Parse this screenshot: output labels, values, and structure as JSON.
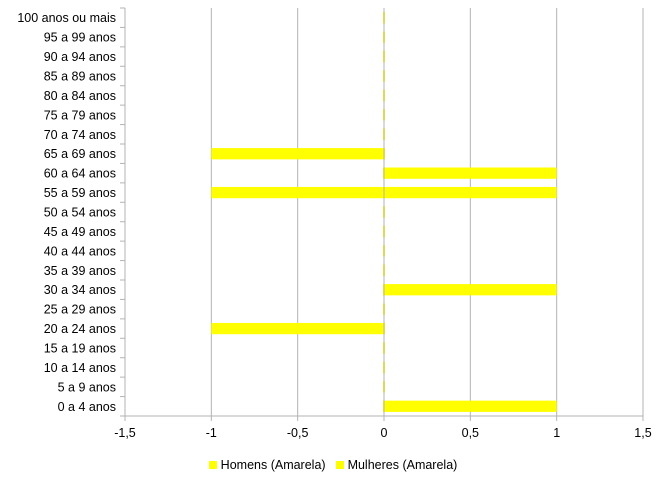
{
  "chart_data": {
    "type": "bar",
    "orientation": "horizontal",
    "stacked": true,
    "categories": [
      "0 a 4 anos",
      "5 a 9 anos",
      "10 a 14 anos",
      "15 a 19 anos",
      "20 a 24 anos",
      "25 a 29 anos",
      "30 a 34 anos",
      "35 a 39 anos",
      "40 a 44 anos",
      "45 a 49 anos",
      "50 a 54 anos",
      "55 a 59 anos",
      "60 a 64 anos",
      "65 a 69 anos",
      "70 a 74 anos",
      "75 a 79 anos",
      "80 a 84 anos",
      "85 a 89 anos",
      "90 a 94 anos",
      "95 a 99 anos",
      "100 anos ou mais"
    ],
    "series": [
      {
        "name": "Homens (Amarela)",
        "color": "#ffff00",
        "values": [
          0,
          0,
          0,
          0,
          -1,
          0,
          0,
          0,
          0,
          0,
          0,
          -1,
          0,
          -1,
          0,
          0,
          0,
          0,
          0,
          0,
          0
        ]
      },
      {
        "name": "Mulheres (Amarela)",
        "color": "#ffff00",
        "values": [
          1,
          0,
          0,
          0,
          0,
          0,
          1,
          0,
          0,
          0,
          0,
          1,
          1,
          0,
          0,
          0,
          0,
          0,
          0,
          0,
          0
        ]
      }
    ],
    "xlim": [
      -1.5,
      1.5
    ],
    "xticks": [
      "-1,5",
      "-1",
      "-0,5",
      "0",
      "0,5",
      "1",
      "1,5"
    ],
    "grid": true,
    "legend_position": "bottom"
  }
}
